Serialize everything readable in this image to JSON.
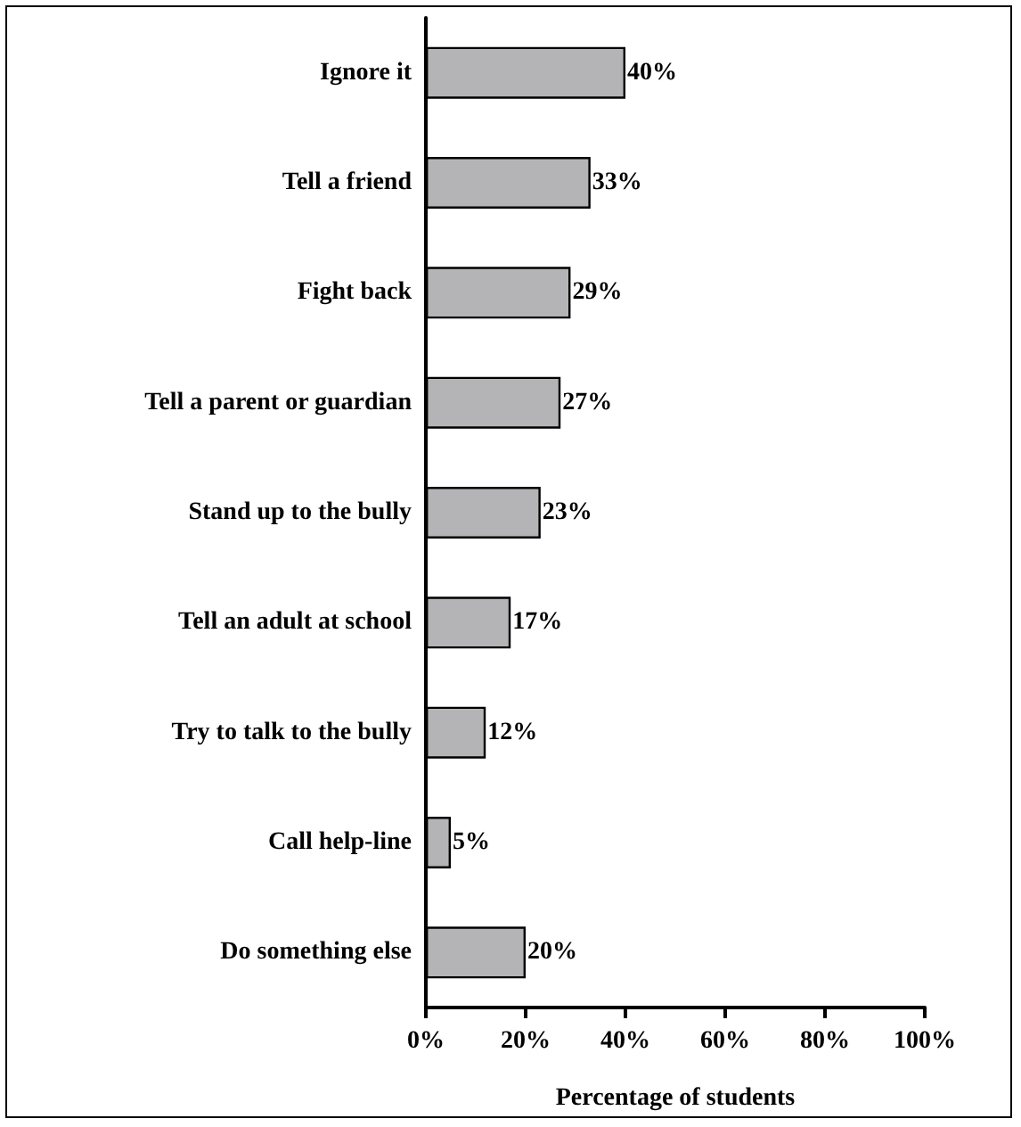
{
  "chart_data": {
    "type": "bar",
    "orientation": "horizontal",
    "xlabel": "Percentage of students",
    "categories": [
      "Ignore it",
      "Tell a friend",
      "Fight back",
      "Tell a parent or guardian",
      "Stand up to the bully",
      "Tell an adult at school",
      "Try to talk to the bully",
      "Call help-line",
      "Do something else"
    ],
    "values": [
      40,
      33,
      29,
      27,
      23,
      17,
      12,
      5,
      20
    ],
    "value_labels": [
      "40%",
      "33%",
      "29%",
      "27%",
      "23%",
      "17%",
      "12%",
      "5%",
      "20%"
    ],
    "color": "#b4b4b6",
    "xlim": [
      0,
      100
    ],
    "xticks": [
      {
        "value": 0,
        "label": "0%"
      },
      {
        "value": 20,
        "label": "20%"
      },
      {
        "value": 40,
        "label": "40%"
      },
      {
        "value": 60,
        "label": "60%"
      },
      {
        "value": 80,
        "label": "80%"
      },
      {
        "value": 100,
        "label": "100%"
      }
    ],
    "grid": false
  }
}
